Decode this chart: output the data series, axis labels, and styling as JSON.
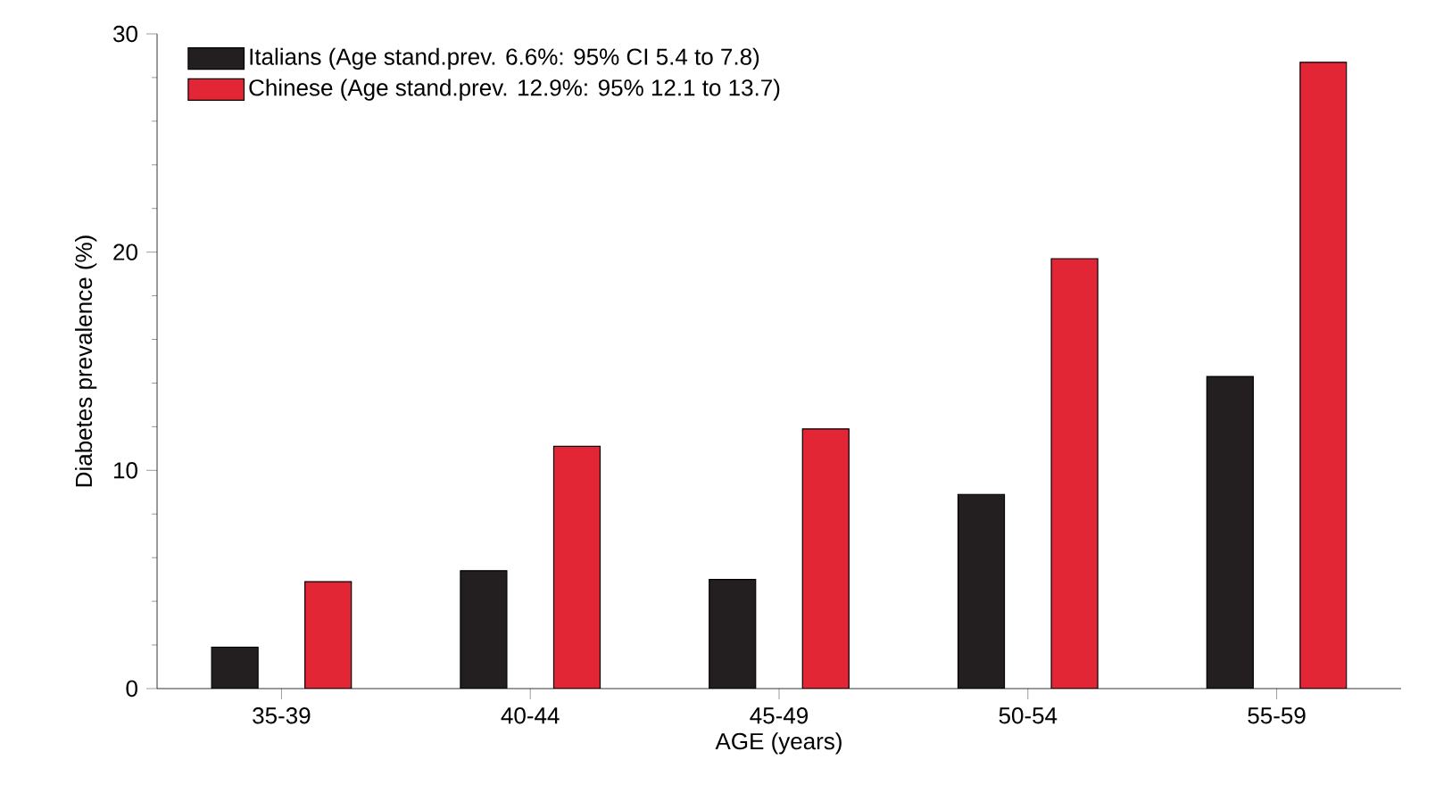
{
  "chart_data": {
    "type": "bar",
    "xlabel": "AGE (years)",
    "ylabel": "Diabetes prevalence (%)",
    "categories": [
      "35-39",
      "40-44",
      "45-49",
      "50-54",
      "55-59"
    ],
    "series": [
      {
        "name": "Italians (Age stand.prev. 6.6%: 95% CI 5.4 to 7.8)",
        "color": "#231f20",
        "values": [
          1.9,
          5.4,
          5.0,
          8.9,
          14.3
        ]
      },
      {
        "name": "Chinese (Age stand.prev. 12.9%: 95% 12.1 to 13.7)",
        "color": "#e32636",
        "values": [
          4.9,
          11.1,
          11.9,
          19.7,
          28.7
        ]
      }
    ],
    "ylim": [
      0,
      30
    ],
    "yticks": [
      0,
      10,
      20,
      30
    ],
    "grid": false,
    "legend": "top left"
  }
}
